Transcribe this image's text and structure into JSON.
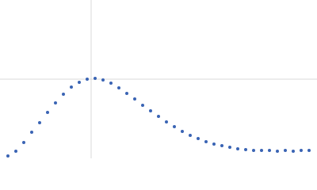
{
  "chart_data": {
    "type": "scatter",
    "x": [
      0.1,
      0.2,
      0.3,
      0.4,
      0.5,
      0.6,
      0.7,
      0.8,
      0.9,
      1.0,
      1.1,
      1.2,
      1.3,
      1.4,
      1.5,
      1.6,
      1.7,
      1.8,
      1.9,
      2.0,
      2.1,
      2.2,
      2.3,
      2.4,
      2.5,
      2.6,
      2.7,
      2.8,
      2.9,
      3.0,
      3.1,
      3.2,
      3.3,
      3.4,
      3.5,
      3.6,
      3.7,
      3.8,
      3.9
    ],
    "series": [
      {
        "color": "#3a64b4",
        "values": [
          0.03,
          0.09,
          0.2,
          0.33,
          0.45,
          0.58,
          0.7,
          0.81,
          0.9,
          0.96,
          1.0,
          1.01,
          0.99,
          0.95,
          0.89,
          0.82,
          0.75,
          0.67,
          0.6,
          0.53,
          0.46,
          0.4,
          0.34,
          0.29,
          0.25,
          0.21,
          0.18,
          0.16,
          0.14,
          0.12,
          0.11,
          0.1,
          0.1,
          0.1,
          0.09,
          0.1,
          0.09,
          0.1,
          0.1
        ]
      }
    ],
    "xlim": [
      0,
      4
    ],
    "ylim": [
      0,
      2
    ],
    "guide_lines": {
      "x": 1.15,
      "y": 1.0
    }
  }
}
